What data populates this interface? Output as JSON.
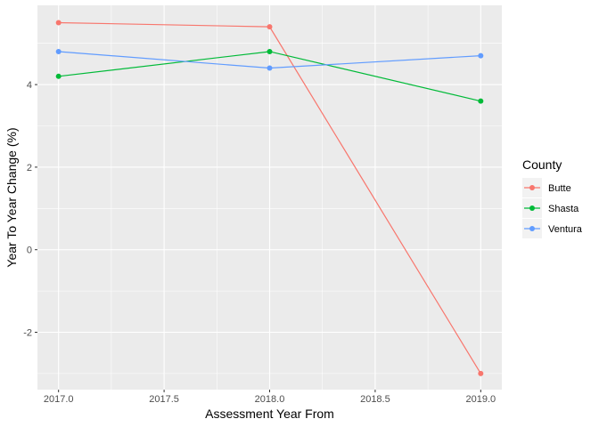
{
  "chart_data": {
    "type": "line",
    "title": "",
    "xlabel": "Assessment Year From",
    "ylabel": "Year To Year Change (%)",
    "x": [
      2017.0,
      2018.0,
      2019.0
    ],
    "xticks": [
      "2017.0",
      "2017.5",
      "2018.0",
      "2018.5",
      "2019.0"
    ],
    "xtick_values": [
      2017.0,
      2017.5,
      2018.0,
      2018.5,
      2019.0
    ],
    "yticks": [
      "-2",
      "0",
      "2",
      "4"
    ],
    "ytick_values": [
      -2,
      0,
      2,
      4
    ],
    "xlim": [
      2016.9,
      2019.1
    ],
    "ylim": [
      -3.39,
      5.92
    ],
    "grid": true,
    "legend": {
      "title": "County",
      "position": "right"
    },
    "series": [
      {
        "name": "Butte",
        "color": "#F8766D",
        "values": [
          5.5,
          5.4,
          -3.0
        ]
      },
      {
        "name": "Shasta",
        "color": "#00BA38",
        "values": [
          4.2,
          4.8,
          3.6
        ]
      },
      {
        "name": "Ventura",
        "color": "#619CFF",
        "values": [
          4.8,
          4.4,
          4.7
        ]
      }
    ]
  }
}
